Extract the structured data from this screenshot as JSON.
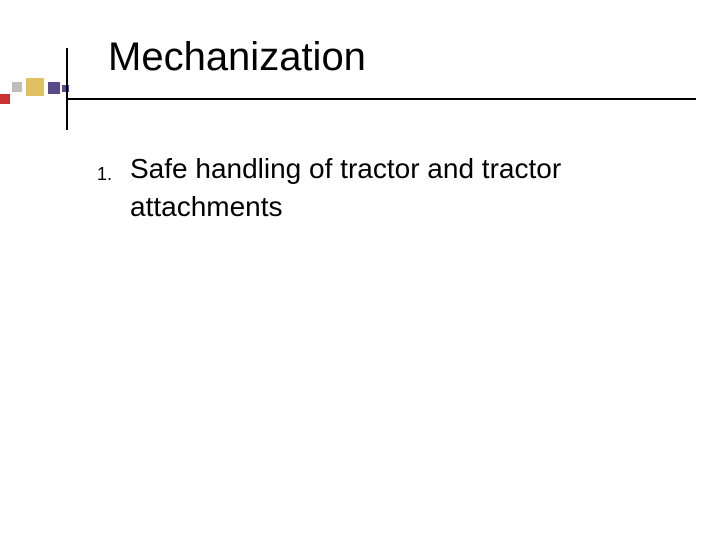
{
  "slide": {
    "title": "Mechanization",
    "title_color": "#000000",
    "title_fontsize": 40,
    "rule_color": "#000000",
    "body_fontsize": 28,
    "body_color": "#000000",
    "number_fontsize": 18,
    "background_color": "#ffffff",
    "decoration_colors": {
      "red": "#c83232",
      "gray": "#bdbdbd",
      "gold": "#e0c060",
      "purple": "#5b4a8a"
    },
    "items": [
      {
        "n": "1.",
        "text": "Safe handling of tractor and tractor attachments"
      }
    ]
  }
}
